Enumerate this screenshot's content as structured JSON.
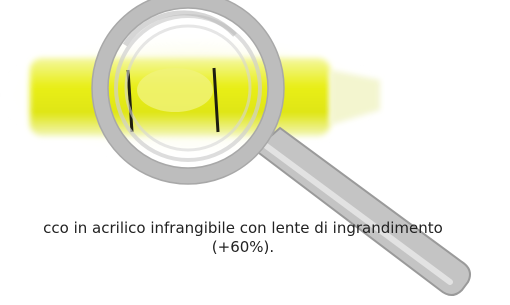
{
  "caption": {
    "lines": [
      "cco in acrilico infrangibile con lente di ingrandimento",
      "(+60%)."
    ]
  }
}
